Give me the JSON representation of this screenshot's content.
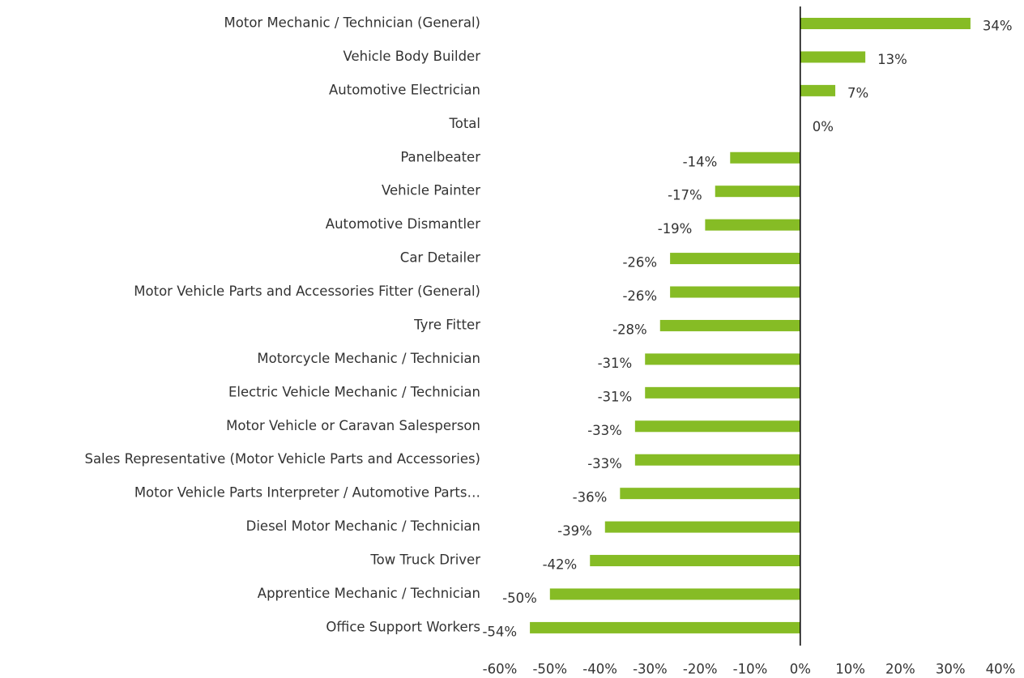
{
  "chart_data": {
    "type": "bar",
    "orientation": "horizontal",
    "categories": [
      "Motor Mechanic / Technician (General)",
      "Vehicle Body Builder",
      "Automotive Electrician",
      "Total",
      "Panelbeater",
      "Vehicle Painter",
      "Automotive Dismantler",
      "Car Detailer",
      "Motor Vehicle Parts and Accessories Fitter (General)",
      "Tyre Fitter",
      "Motorcycle Mechanic / Technician",
      "Electric Vehicle Mechanic / Technician",
      "Motor Vehicle or Caravan Salesperson",
      "Sales Representative (Motor Vehicle Parts and Accessories)",
      "Motor Vehicle Parts Interpreter / Automotive Parts…",
      "Diesel Motor Mechanic / Technician",
      "Tow Truck Driver",
      "Apprentice Mechanic / Technician",
      "Office Support Workers"
    ],
    "values": [
      34,
      13,
      7,
      0,
      -14,
      -17,
      -19,
      -26,
      -26,
      -28,
      -31,
      -31,
      -33,
      -33,
      -36,
      -39,
      -42,
      -50,
      -54
    ],
    "value_labels": [
      "34%",
      "13%",
      "7%",
      "0%",
      "-14%",
      "-17%",
      "-19%",
      "-26%",
      "-26%",
      "-28%",
      "-31%",
      "-31%",
      "-33%",
      "-33%",
      "-36%",
      "-39%",
      "-42%",
      "-50%",
      "-54%"
    ],
    "color": "#86bc25",
    "xlim": [
      -60,
      40
    ],
    "xticks": [
      {
        "value": -60,
        "label": "-60%"
      },
      {
        "value": -50,
        "label": "-50%"
      },
      {
        "value": -40,
        "label": "-40%"
      },
      {
        "value": -30,
        "label": "-30%"
      },
      {
        "value": -20,
        "label": "-20%"
      },
      {
        "value": -10,
        "label": "-10%"
      },
      {
        "value": 0,
        "label": "0%"
      },
      {
        "value": 10,
        "label": "10%"
      },
      {
        "value": 20,
        "label": "20%"
      },
      {
        "value": 30,
        "label": "30%"
      },
      {
        "value": 40,
        "label": "40%"
      }
    ],
    "grid": false
  }
}
